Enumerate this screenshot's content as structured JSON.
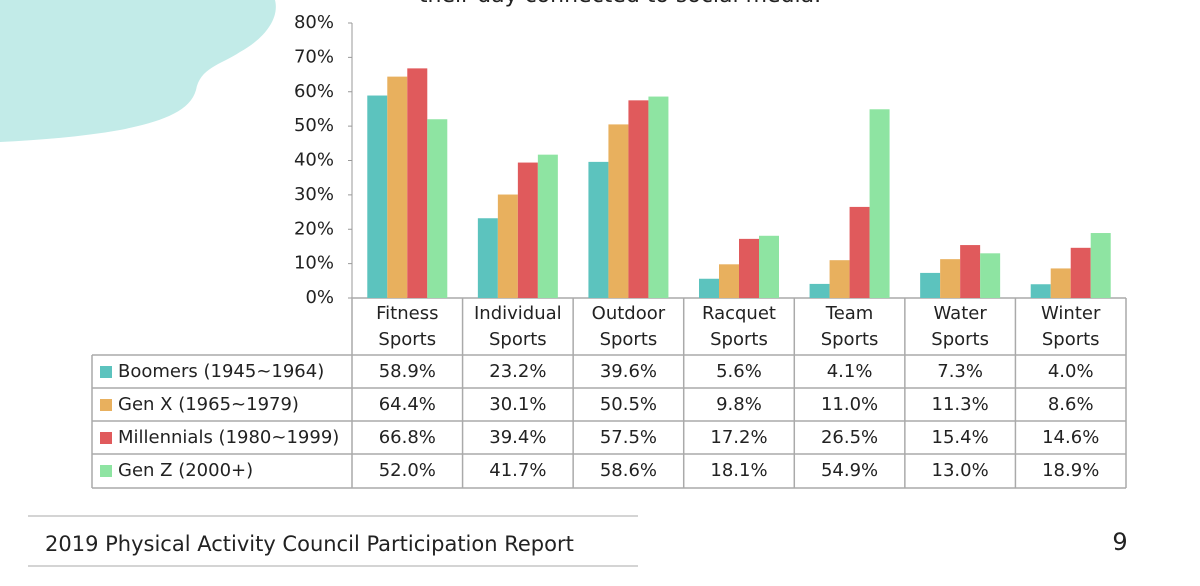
{
  "chart_data": {
    "type": "bar",
    "annotation": "their day connected to social media.",
    "categories": [
      "Fitness Sports",
      "Individual Sports",
      "Outdoor Sports",
      "Racquet Sports",
      "Team Sports",
      "Water Sports",
      "Winter Sports"
    ],
    "series": [
      {
        "name": "Boomers (1945~1964)",
        "color": "#5cc3be",
        "values": [
          58.9,
          23.2,
          39.6,
          5.6,
          4.1,
          7.3,
          4.0
        ],
        "value_labels": [
          "58.9%",
          "23.2%",
          "39.6%",
          "5.6%",
          "4.1%",
          "7.3%",
          "4.0%"
        ]
      },
      {
        "name": "Gen X (1965~1979)",
        "color": "#e8b05e",
        "values": [
          64.4,
          30.1,
          50.5,
          9.8,
          11.0,
          11.3,
          8.6
        ],
        "value_labels": [
          "64.4%",
          "30.1%",
          "50.5%",
          "9.8%",
          "11.0%",
          "11.3%",
          "8.6%"
        ]
      },
      {
        "name": "Millennials (1980~1999)",
        "color": "#e05a5c",
        "values": [
          66.8,
          39.4,
          57.5,
          17.2,
          26.5,
          15.4,
          14.6
        ],
        "value_labels": [
          "66.8%",
          "39.4%",
          "57.5%",
          "17.2%",
          "26.5%",
          "15.4%",
          "14.6%"
        ]
      },
      {
        "name": "Gen Z (2000+)",
        "color": "#8ee4a2",
        "values": [
          52.0,
          41.7,
          58.6,
          18.1,
          54.9,
          13.0,
          18.9
        ],
        "value_labels": [
          "52.0%",
          "41.7%",
          "58.6%",
          "18.1%",
          "54.9%",
          "13.0%",
          "18.9%"
        ]
      }
    ],
    "ylim": [
      0,
      80
    ],
    "yticks": [
      {
        "value": 0,
        "label": "0%"
      },
      {
        "value": 10,
        "label": "10%"
      },
      {
        "value": 20,
        "label": "20%"
      },
      {
        "value": 30,
        "label": "30%"
      },
      {
        "value": 40,
        "label": "40%"
      },
      {
        "value": 50,
        "label": "50%"
      },
      {
        "value": 60,
        "label": "60%"
      },
      {
        "value": 70,
        "label": "70%"
      },
      {
        "value": 80,
        "label": "80%"
      }
    ]
  },
  "footer": {
    "text": "2019 Physical Activity Council Participation Report",
    "page": "9"
  }
}
